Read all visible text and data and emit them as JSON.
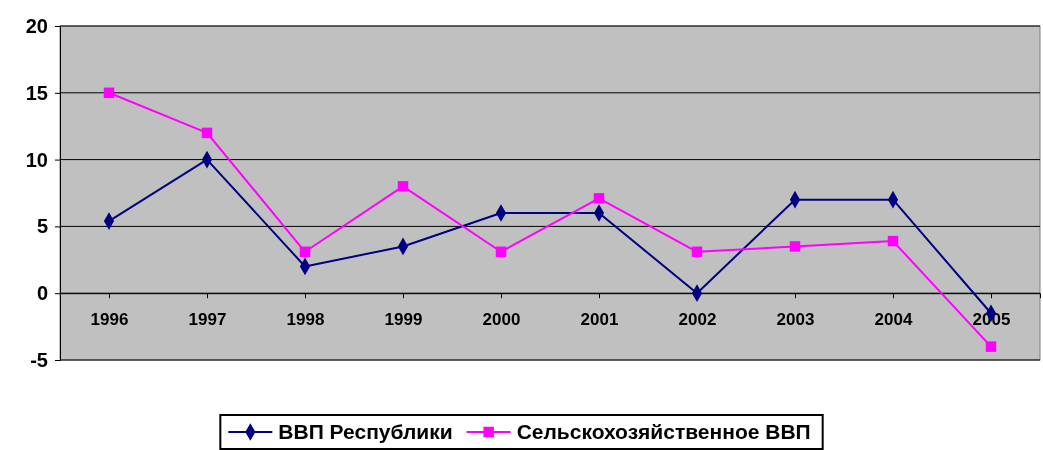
{
  "chart_data": {
    "type": "line",
    "categories": [
      "1996",
      "1997",
      "1998",
      "1999",
      "2000",
      "2001",
      "2002",
      "2003",
      "2004",
      "2005"
    ],
    "series": [
      {
        "name": "ВВП Республики",
        "color": "#000080",
        "marker": "diamond",
        "values": [
          5.4,
          10,
          2,
          3.5,
          6,
          6,
          0,
          7,
          7,
          -1.5
        ]
      },
      {
        "name": "Сельскохозяйственное ВВП",
        "color": "#ff00ff",
        "marker": "square",
        "values": [
          15,
          12,
          3.1,
          8,
          3.1,
          7.1,
          3.1,
          3.5,
          3.9,
          -4
        ]
      }
    ],
    "ylim": [
      -5,
      20
    ],
    "yticks": [
      -5,
      0,
      5,
      10,
      15,
      20
    ],
    "grid": "y",
    "legend": "bottom"
  }
}
